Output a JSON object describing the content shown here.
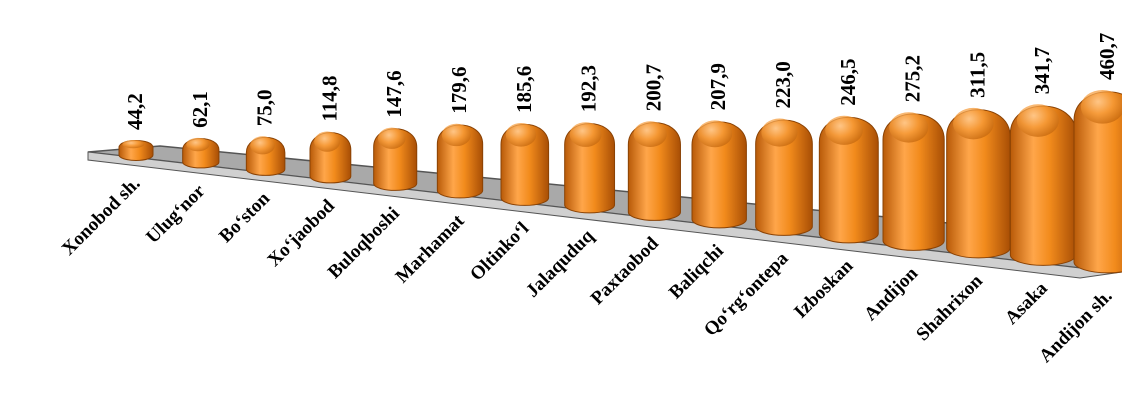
{
  "chart_data": {
    "type": "bar",
    "categories": [
      "Xonobod sh.",
      "Ulug‘nor",
      "Bo‘ston",
      "Xo‘jaobod",
      "Buloqboshi",
      "Marhamat",
      "Oltinko‘l",
      "Jalaquduq",
      "Paxtaobod",
      "Baliqchi",
      "Qo‘rg‘ontepa",
      "Izboskan",
      "Andijon",
      "Shahrixon",
      "Asaka",
      "Andijon sh."
    ],
    "values": [
      44.2,
      62.1,
      75.0,
      114.8,
      147.6,
      179.6,
      185.6,
      192.3,
      200.7,
      207.9,
      223.0,
      246.5,
      275.2,
      311.5,
      341.7,
      460.7
    ],
    "value_labels": [
      "44,2",
      "62,1",
      "75,0",
      "114,8",
      "147,6",
      "179,6",
      "185,6",
      "192,3",
      "200,7",
      "207,9",
      "223,0",
      "246,5",
      "275,2",
      "311,5",
      "341,7",
      "460,7"
    ],
    "title": "",
    "xlabel": "",
    "ylabel": "",
    "ylim": [
      0,
      460.7
    ],
    "grid": false,
    "legend": "none",
    "style": "3d-cylinder",
    "colors": {
      "bar": "#f28b1c",
      "bar_light": "#ffc27a",
      "bar_dark": "#a84e05",
      "floor": "#a9a9a9",
      "floor_edge": "#555555"
    }
  }
}
